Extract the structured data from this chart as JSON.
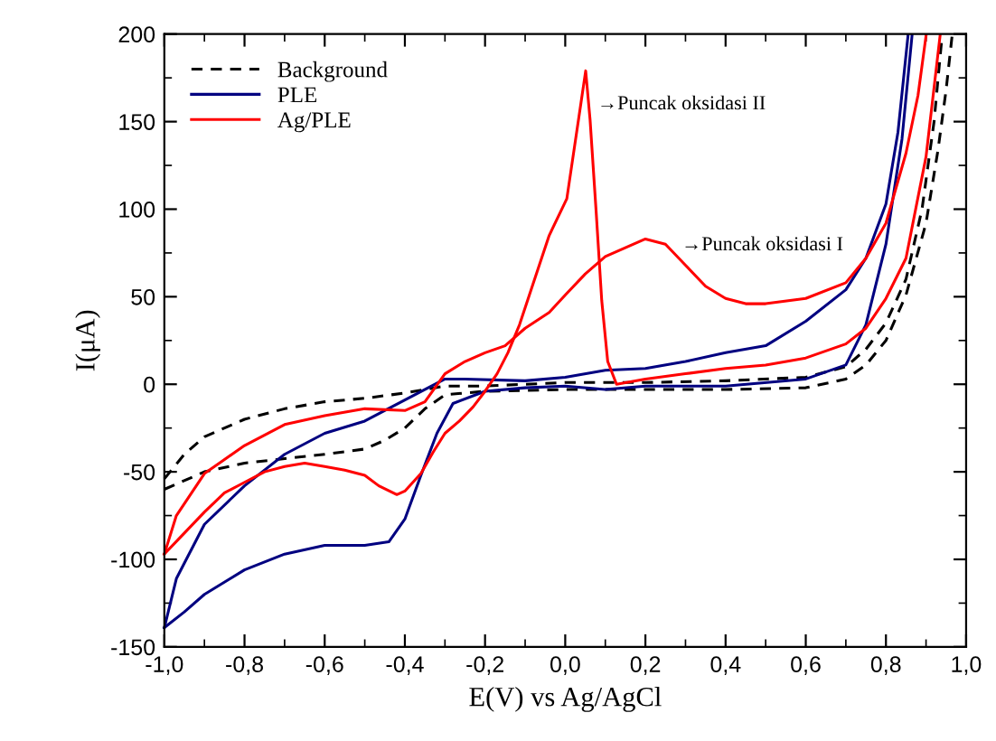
{
  "chart_data": {
    "type": "line",
    "xlabel": "E(V) vs Ag/AgCl",
    "ylabel": "I(μA)",
    "xlim": [
      -1.0,
      1.0
    ],
    "ylim": [
      -150,
      200
    ],
    "xticks": [
      {
        "value": -1.0,
        "label": "-1,0"
      },
      {
        "value": -0.8,
        "label": "-0,8"
      },
      {
        "value": -0.6,
        "label": "-0,6"
      },
      {
        "value": -0.4,
        "label": "-0,4"
      },
      {
        "value": -0.2,
        "label": "-0,2"
      },
      {
        "value": 0.0,
        "label": "0,0"
      },
      {
        "value": 0.2,
        "label": "0,2"
      },
      {
        "value": 0.4,
        "label": "0,4"
      },
      {
        "value": 0.6,
        "label": "0,6"
      },
      {
        "value": 0.8,
        "label": "0,8"
      },
      {
        "value": 1.0,
        "label": "1,0"
      }
    ],
    "yticks": [
      -150,
      -100,
      -50,
      0,
      50,
      100,
      150,
      200
    ],
    "grid": false,
    "legend": "top left",
    "marker": "none",
    "series": [
      {
        "name": "Background",
        "color": "#000000",
        "line_style": "dashed",
        "x": [
          -1.0,
          -0.9,
          -0.8,
          -0.6,
          -0.5,
          -0.45,
          -0.4,
          -0.35,
          -0.3,
          -0.2,
          0.0,
          0.2,
          0.4,
          0.6,
          0.7,
          0.75,
          0.8,
          0.85,
          0.9,
          0.93,
          0.95,
          0.965
        ],
        "values": [
          -60,
          -50,
          -45,
          -40,
          -37,
          -32,
          -25,
          -14,
          -6,
          -4,
          -3,
          -3,
          -3,
          -2,
          3,
          11,
          25,
          51,
          92,
          134,
          168,
          199
        ]
      },
      {
        "color": "#000000",
        "line_style": "dashed",
        "x": [
          -1.0,
          -0.95,
          -0.9,
          -0.8,
          -0.7,
          -0.6,
          -0.5,
          -0.4,
          -0.3,
          -0.2,
          0.0,
          0.2,
          0.4,
          0.6,
          0.7,
          0.75,
          0.8,
          0.85,
          0.89,
          0.92,
          0.94
        ],
        "values": [
          -54,
          -40,
          -30,
          -20,
          -14,
          -10,
          -8,
          -5,
          -1,
          -1,
          1,
          1,
          2,
          4,
          10,
          20,
          35,
          60,
          100,
          150,
          199
        ]
      },
      {
        "name": "PLE",
        "color": "#000080",
        "line_style": "solid",
        "x": [
          -1.0,
          -0.97,
          -0.9,
          -0.8,
          -0.7,
          -0.6,
          -0.5,
          -0.4,
          -0.3,
          -0.25,
          -0.1,
          0.0,
          0.1,
          0.2,
          0.3,
          0.4,
          0.5,
          0.6,
          0.7,
          0.75,
          0.8,
          0.83,
          0.855
        ],
        "values": [
          -139,
          -111,
          -80,
          -58,
          -40,
          -28,
          -21,
          -9,
          3,
          3,
          2,
          4,
          8,
          9,
          13,
          18,
          22,
          36,
          54,
          72,
          103,
          144,
          199
        ]
      },
      {
        "color": "#000080",
        "line_style": "solid",
        "x": [
          -1.0,
          -0.95,
          -0.9,
          -0.8,
          -0.7,
          -0.6,
          -0.55,
          -0.5,
          -0.44,
          -0.4,
          -0.36,
          -0.32,
          -0.28,
          -0.2,
          -0.1,
          0.0,
          0.1,
          0.2,
          0.4,
          0.6,
          0.7,
          0.75,
          0.8,
          0.84,
          0.865
        ],
        "values": [
          -139,
          -130,
          -120,
          -106,
          -97,
          -92,
          -92,
          -92,
          -90,
          -77,
          -52,
          -28,
          -11,
          -4,
          -2,
          -1,
          -3,
          -1,
          -1,
          3,
          11,
          34,
          80,
          140,
          199
        ]
      },
      {
        "name": "Ag/PLE",
        "color": "#ff0000",
        "line_style": "solid",
        "x": [
          -1.0,
          -0.97,
          -0.9,
          -0.8,
          -0.7,
          -0.6,
          -0.5,
          -0.4,
          -0.35,
          -0.3,
          -0.25,
          -0.2,
          -0.15,
          -0.1,
          -0.04,
          0.0,
          0.05,
          0.1,
          0.15,
          0.2,
          0.25,
          0.3,
          0.35,
          0.4,
          0.45,
          0.5,
          0.6,
          0.7,
          0.75,
          0.8,
          0.85,
          0.88,
          0.9
        ],
        "values": [
          -97,
          -75,
          -51,
          -35,
          -23,
          -18,
          -14,
          -15,
          -10,
          6,
          13,
          18,
          22,
          32,
          41,
          51,
          63,
          73,
          78,
          83,
          80,
          68,
          56,
          49,
          46,
          46,
          49,
          58,
          72,
          92,
          132,
          165,
          199
        ]
      },
      {
        "color": "#ff0000",
        "line_style": "solid",
        "x": [
          -1.0,
          -0.95,
          -0.9,
          -0.85,
          -0.8,
          -0.75,
          -0.7,
          -0.65,
          -0.6,
          -0.55,
          -0.5,
          -0.465,
          -0.42,
          -0.4,
          -0.36,
          -0.33,
          -0.3,
          -0.264,
          -0.23,
          -0.2,
          -0.17,
          -0.143,
          -0.114,
          -0.085,
          -0.04,
          0.004,
          0.033,
          0.051,
          0.062,
          0.077,
          0.091,
          0.106,
          0.128,
          0.2,
          0.3,
          0.4,
          0.5,
          0.6,
          0.7,
          0.75,
          0.8,
          0.85,
          0.9,
          0.935
        ],
        "values": [
          -97,
          -85,
          -73,
          -62,
          -56,
          -50,
          -47,
          -45,
          -47,
          -49,
          -52,
          -58,
          -63,
          -61,
          -51,
          -39,
          -28,
          -21,
          -13,
          -4,
          6,
          18,
          34,
          54,
          85,
          106,
          151,
          179,
          151,
          99,
          48,
          13,
          0,
          3,
          6,
          9,
          11,
          15,
          23,
          32,
          49,
          72,
          130,
          199
        ]
      }
    ],
    "annotations": [
      "→Puncak oksidasi II",
      "→Puncak oksidasi I"
    ]
  }
}
